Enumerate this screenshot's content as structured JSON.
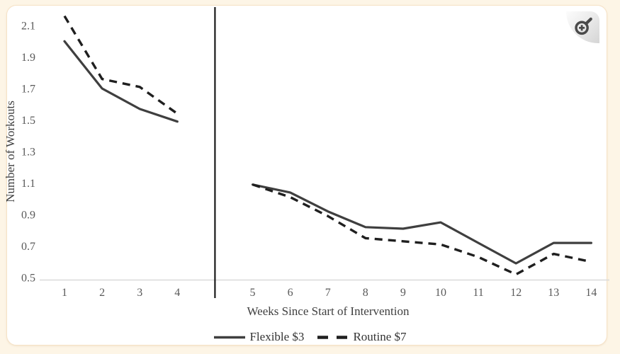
{
  "page": {
    "background_color": "#fdf5e6",
    "card_background": "#ffffff",
    "card_border_color": "#f6e2c6"
  },
  "toolbar": {
    "zoom_icon": "zoom-in-icon",
    "zoom_icon_color": "#4a4a4a"
  },
  "chart_data": {
    "type": "line",
    "title": "",
    "xlabel": "Weeks Since Start of Intervention",
    "ylabel": "Number of Workouts",
    "x": [
      1,
      2,
      3,
      4,
      5,
      6,
      7,
      8,
      9,
      10,
      11,
      12,
      13,
      14
    ],
    "series": [
      {
        "name": "Flexible $3",
        "style": "solid",
        "color": "#3f3f3f",
        "values": [
          2.0,
          1.7,
          1.57,
          1.49,
          1.09,
          1.04,
          0.92,
          0.82,
          0.81,
          0.85,
          0.72,
          0.59,
          0.72,
          0.72
        ]
      },
      {
        "name": "Routine $7",
        "style": "dashed",
        "color": "#1f1f1f",
        "values": [
          2.16,
          1.76,
          1.71,
          1.54,
          1.09,
          1.01,
          0.89,
          0.75,
          0.73,
          0.71,
          0.63,
          0.52,
          0.65,
          0.6
        ]
      }
    ],
    "y_ticks": [
      0.5,
      0.7,
      0.9,
      1.1,
      1.3,
      1.5,
      1.7,
      1.9,
      2.1
    ],
    "ylim": [
      0.47,
      2.25
    ],
    "grid": false,
    "legend_position": "bottom",
    "divider_after_x": 4,
    "axis_color": "#d9d9d9",
    "tick_label_color": "#595959",
    "divider_color": "#1a1a1a"
  }
}
